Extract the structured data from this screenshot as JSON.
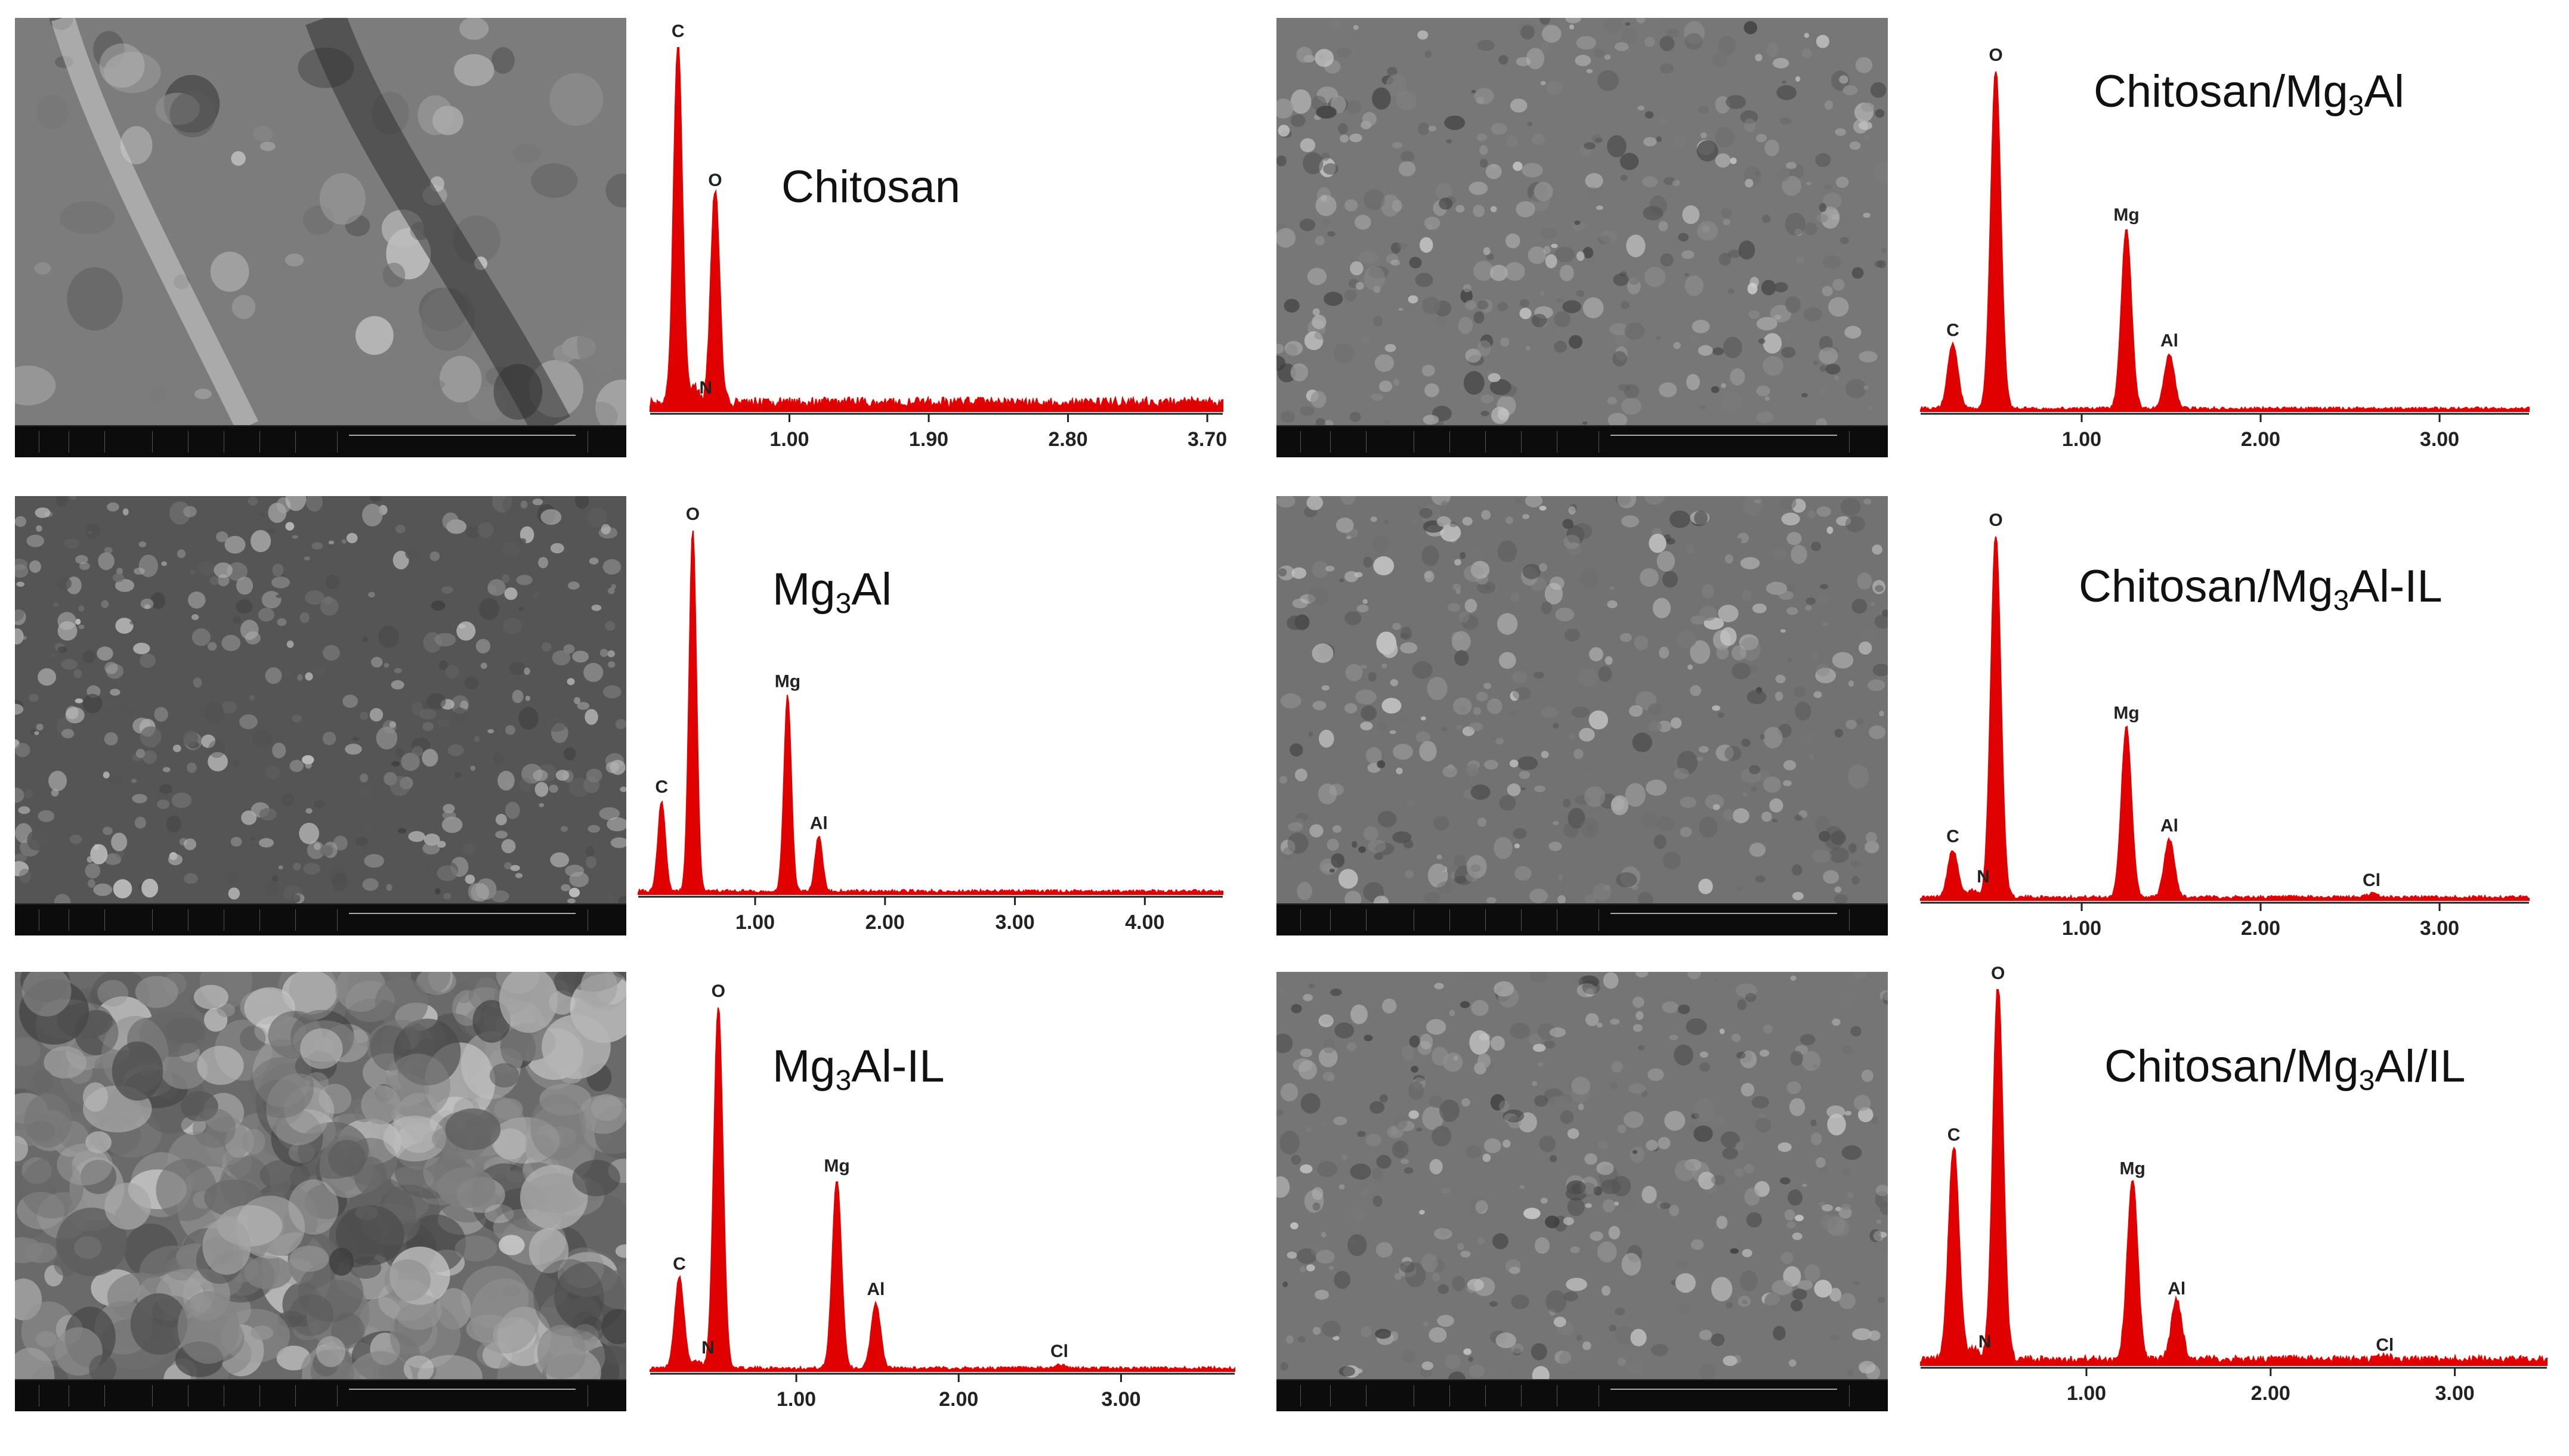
{
  "panels": [
    {
      "title": "Chitosan",
      "chart": 0
    },
    {
      "title": "Mg3Al",
      "chart": 1
    },
    {
      "title": "Mg3Al-IL",
      "chart": 2
    },
    {
      "title": "Chitosan/Mg3Al",
      "chart": 3
    },
    {
      "title": "Chitosan/Mg3Al-IL",
      "chart": 4
    },
    {
      "title": "Chitosan/Mg3Al/IL",
      "chart": 5
    }
  ],
  "colors": {
    "spectrum": "#e00000",
    "axis": "#222222"
  },
  "chart_data": [
    {
      "type": "area",
      "title": "Chitosan",
      "xlim": [
        0.1,
        3.8
      ],
      "ticks": [
        "1.00",
        "1.90",
        "2.80",
        "3.70"
      ],
      "peaks": [
        {
          "label": "C",
          "x": 0.28,
          "height": 1.0
        },
        {
          "label": "N",
          "x": 0.39,
          "height": 0.04
        },
        {
          "label": "O",
          "x": 0.52,
          "height": 0.59
        }
      ],
      "background": 0.03
    },
    {
      "type": "area",
      "title": "Mg3Al",
      "xlim": [
        0.1,
        4.6
      ],
      "ticks": [
        "1.00",
        "2.00",
        "3.00",
        "4.00"
      ],
      "peaks": [
        {
          "label": "C",
          "x": 0.28,
          "height": 0.25
        },
        {
          "label": "O",
          "x": 0.52,
          "height": 1.0
        },
        {
          "label": "Mg",
          "x": 1.25,
          "height": 0.54
        },
        {
          "label": "Al",
          "x": 1.49,
          "height": 0.15
        }
      ],
      "background": 0.01
    },
    {
      "type": "area",
      "title": "Mg3Al-IL",
      "xlim": [
        0.1,
        3.7
      ],
      "ticks": [
        "1.00",
        "2.00",
        "3.00"
      ],
      "peaks": [
        {
          "label": "C",
          "x": 0.28,
          "height": 0.25
        },
        {
          "label": "N",
          "x": 0.39,
          "height": 0.02
        },
        {
          "label": "O",
          "x": 0.52,
          "height": 1.0
        },
        {
          "label": "Mg",
          "x": 1.25,
          "height": 0.52
        },
        {
          "label": "Al",
          "x": 1.49,
          "height": 0.18
        },
        {
          "label": "Cl",
          "x": 2.62,
          "height": 0.01
        }
      ],
      "background": 0.01
    },
    {
      "type": "area",
      "title": "Chitosan/Mg3Al",
      "xlim": [
        0.1,
        3.5
      ],
      "ticks": [
        "1.00",
        "2.00",
        "3.00"
      ],
      "peaks": [
        {
          "label": "C",
          "x": 0.28,
          "height": 0.19
        },
        {
          "label": "O",
          "x": 0.52,
          "height": 1.0
        },
        {
          "label": "Mg",
          "x": 1.25,
          "height": 0.53
        },
        {
          "label": "Al",
          "x": 1.49,
          "height": 0.16
        }
      ],
      "background": 0.01
    },
    {
      "type": "area",
      "title": "Chitosan/Mg3Al-IL",
      "xlim": [
        0.1,
        3.5
      ],
      "ticks": [
        "1.00",
        "2.00",
        "3.00"
      ],
      "peaks": [
        {
          "label": "C",
          "x": 0.28,
          "height": 0.13
        },
        {
          "label": "N",
          "x": 0.39,
          "height": 0.02
        },
        {
          "label": "O",
          "x": 0.52,
          "height": 1.0
        },
        {
          "label": "Mg",
          "x": 1.25,
          "height": 0.47
        },
        {
          "label": "Al",
          "x": 1.49,
          "height": 0.16
        },
        {
          "label": "Cl",
          "x": 2.62,
          "height": 0.01
        }
      ],
      "background": 0.01
    },
    {
      "type": "area",
      "title": "Chitosan/Mg3Al/IL",
      "xlim": [
        0.1,
        3.5
      ],
      "ticks": [
        "1.00",
        "2.00",
        "3.00"
      ],
      "peaks": [
        {
          "label": "C",
          "x": 0.28,
          "height": 0.57
        },
        {
          "label": "N",
          "x": 0.39,
          "height": 0.03
        },
        {
          "label": "O",
          "x": 0.52,
          "height": 1.0
        },
        {
          "label": "Mg",
          "x": 1.25,
          "height": 0.48
        },
        {
          "label": "Al",
          "x": 1.49,
          "height": 0.16
        },
        {
          "label": "Cl",
          "x": 2.62,
          "height": 0.01
        }
      ],
      "background": 0.02
    }
  ]
}
